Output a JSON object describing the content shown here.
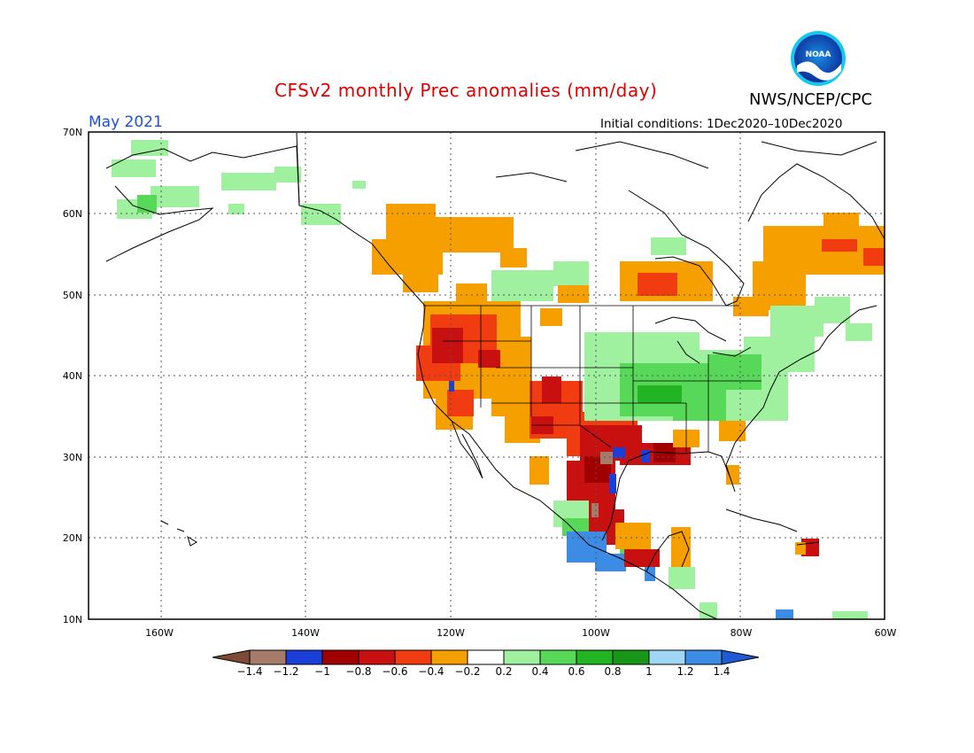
{
  "header": {
    "title": "CFSv2 monthly Prec anomalies (mm/day)",
    "agency": "NWS/NCEP/CPC",
    "period": "May 2021",
    "initial_conditions": "Initial conditions: 1Dec2020–10Dec2020",
    "logo_text": "NOAA"
  },
  "axes": {
    "lat_labels": [
      "70N",
      "60N",
      "50N",
      "40N",
      "30N",
      "20N",
      "10N"
    ],
    "lon_labels": [
      "160W",
      "140W",
      "120W",
      "100W",
      "80W",
      "60W"
    ]
  },
  "colorbar": {
    "labels": [
      "−1.4",
      "−1.2",
      "−1",
      "−0.8",
      "−0.6",
      "−0.4",
      "−0.2",
      "0.2",
      "0.4",
      "0.6",
      "0.8",
      "1",
      "1.2",
      "1.4"
    ],
    "colors": [
      "#7d4a36",
      "#a87a6a",
      "#1a3fd8",
      "#a00000",
      "#c81010",
      "#f03c10",
      "#f5a000",
      "#ffffff",
      "#9ff09f",
      "#58d858",
      "#22b422",
      "#189618",
      "#9fd6f5",
      "#3c8ce6",
      "#1e5ad2"
    ]
  },
  "map_data": {
    "region": "North America",
    "lat_range": [
      10,
      70
    ],
    "lon_range": [
      -170,
      -60
    ],
    "anomaly_regions": [
      {
        "name": "Pacific Northwest and California",
        "category": "-0.6",
        "color": "#f03c10"
      },
      {
        "name": "Southern Plains and Texas",
        "category": "-0.8",
        "color": "#c81010"
      },
      {
        "name": "Ohio Valley and Mid-Atlantic",
        "category": "0.4",
        "color": "#58d858"
      },
      {
        "name": "Southern Mexico",
        "category": "1.2",
        "color": "#3c8ce6"
      },
      {
        "name": "Western Canada",
        "category": "-0.4",
        "color": "#f5a000"
      },
      {
        "name": "Quebec and Labrador",
        "category": "-0.4",
        "color": "#f5a000"
      },
      {
        "name": "Alaska",
        "category": "0.2",
        "color": "#9ff09f"
      }
    ]
  }
}
